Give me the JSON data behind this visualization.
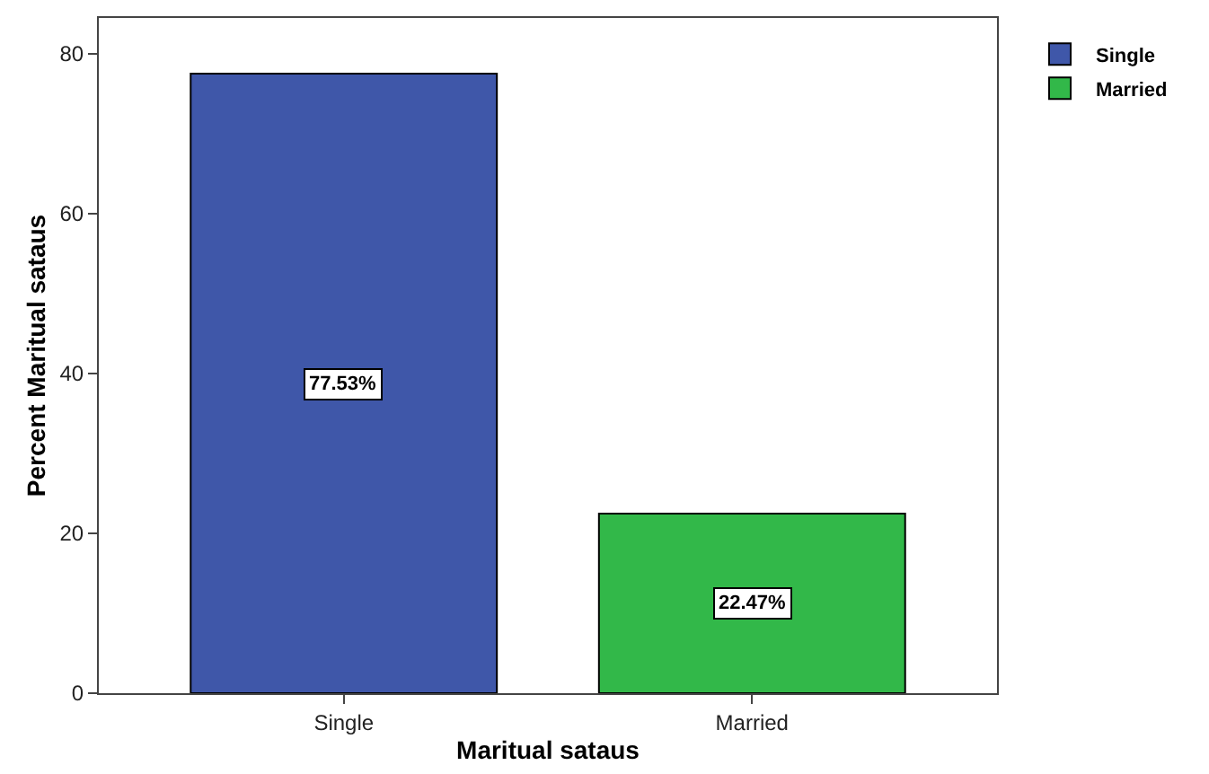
{
  "chart_data": {
    "type": "bar",
    "xlabel": "Maritual sataus",
    "ylabel": "Percent Maritual sataus",
    "categories": [
      "Single",
      "Married"
    ],
    "series": [
      {
        "name": "Single",
        "color": "#3f57a9",
        "values": [
          77.53,
          null
        ],
        "value_labels": [
          "77.53%",
          null
        ]
      },
      {
        "name": "Married",
        "color": "#32b849",
        "values": [
          null,
          22.47
        ],
        "value_labels": [
          null,
          "22.47%"
        ]
      }
    ],
    "ylim": [
      0,
      84.5
    ],
    "yticks": [
      0,
      20,
      40,
      60,
      80
    ],
    "grid": false,
    "legend": "top right"
  }
}
